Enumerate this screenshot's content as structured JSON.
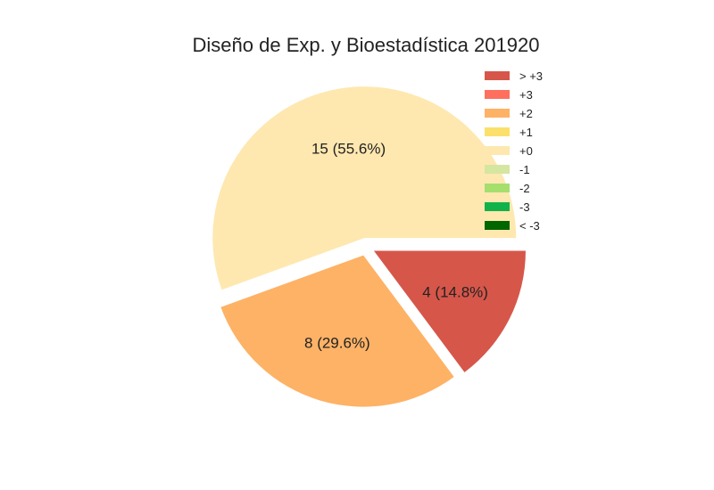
{
  "chart_data": {
    "type": "pie",
    "title": "Diseño de Exp. y Bioestadística 201920",
    "slices": [
      {
        "category": "> +3",
        "value": 4,
        "label": "4 (14.8%)",
        "color": "#d6564a"
      },
      {
        "category": "+2",
        "value": 8,
        "label": "8 (29.6%)",
        "color": "#fdb266"
      },
      {
        "category": "+0",
        "value": 15,
        "label": "15 (55.6%)",
        "color": "#fee8b0"
      }
    ],
    "start_angle_deg": 0,
    "direction": "clockwise",
    "exploded": true,
    "legend": {
      "placement": "top-right",
      "items": [
        {
          "label": "> +3",
          "color": "#d6564a"
        },
        {
          "label": "+3",
          "color": "#fe6f5e"
        },
        {
          "label": "+2",
          "color": "#fdb266"
        },
        {
          "label": "+1",
          "color": "#fbe06c"
        },
        {
          "label": "+0",
          "color": "#fee8b0"
        },
        {
          "label": "-1",
          "color": "#d5e6a0"
        },
        {
          "label": "-2",
          "color": "#a6df6e"
        },
        {
          "label": "-3",
          "color": "#12b24a"
        },
        {
          "label": "< -3",
          "color": "#006600"
        }
      ]
    }
  }
}
